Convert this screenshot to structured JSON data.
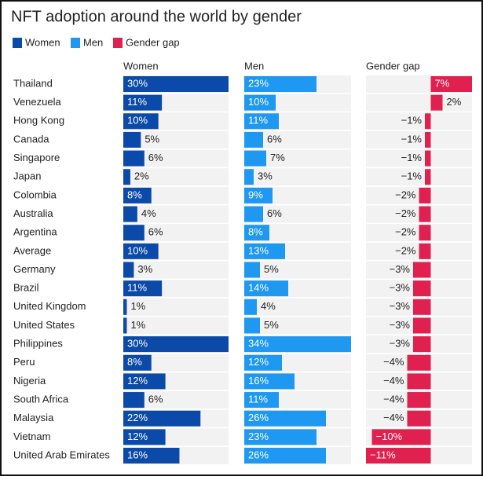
{
  "chart_data": {
    "type": "bar",
    "orientation": "horizontal",
    "title": "NFT adoption around the world by gender",
    "categories": [
      "Thailand",
      "Venezuela",
      "Hong Kong",
      "Canada",
      "Singapore",
      "Japan",
      "Colombia",
      "Australia",
      "Argentina",
      "Average",
      "Germany",
      "Brazil",
      "United Kingdom",
      "United States",
      "Philippines",
      "Peru",
      "Nigeria",
      "South Africa",
      "Malaysia",
      "Vietnam",
      "United Arab Emirates"
    ],
    "series": [
      {
        "name": "Women",
        "color": "#0b4aa8",
        "xlim": [
          0,
          30
        ],
        "values": [
          30,
          11,
          10,
          5,
          6,
          2,
          8,
          4,
          6,
          10,
          3,
          11,
          1,
          1,
          30,
          8,
          12,
          6,
          22,
          12,
          16
        ],
        "value_labels": [
          "30%",
          "11%",
          "10%",
          "5%",
          "6%",
          "2%",
          "8%",
          "4%",
          "6%",
          "10%",
          "3%",
          "11%",
          "1%",
          "1%",
          "30%",
          "8%",
          "12%",
          "6%",
          "22%",
          "12%",
          "16%"
        ]
      },
      {
        "name": "Men",
        "color": "#1e98f0",
        "xlim": [
          0,
          34
        ],
        "values": [
          23,
          10,
          11,
          6,
          7,
          3,
          9,
          6,
          8,
          13,
          5,
          14,
          4,
          5,
          34,
          12,
          16,
          11,
          26,
          23,
          26
        ],
        "value_labels": [
          "23%",
          "10%",
          "11%",
          "6%",
          "7%",
          "3%",
          "9%",
          "6%",
          "8%",
          "13%",
          "5%",
          "14%",
          "4%",
          "5%",
          "34%",
          "12%",
          "16%",
          "11%",
          "26%",
          "23%",
          "26%"
        ]
      },
      {
        "name": "Gender gap",
        "color": "#e0204f",
        "xlim": [
          -11,
          7
        ],
        "values": [
          7,
          2,
          -1,
          -1,
          -1,
          -1,
          -2,
          -2,
          -2,
          -2,
          -3,
          -3,
          -3,
          -3,
          -3,
          -4,
          -4,
          -4,
          -4,
          -10,
          -11
        ],
        "value_labels": [
          "7%",
          "2%",
          "−1%",
          "−1%",
          "−1%",
          "−1%",
          "−2%",
          "−2%",
          "−2%",
          "−2%",
          "−3%",
          "−3%",
          "−3%",
          "−3%",
          "−3%",
          "−4%",
          "−4%",
          "−4%",
          "−4%",
          "−10%",
          "−11%"
        ]
      }
    ]
  }
}
